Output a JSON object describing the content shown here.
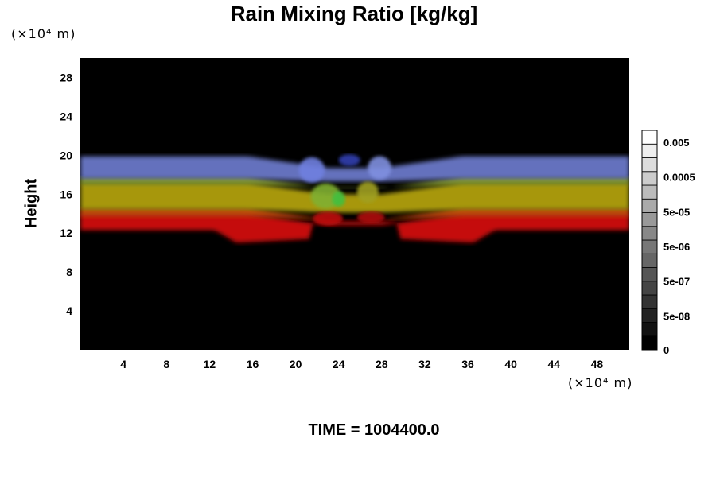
{
  "chart_data": {
    "type": "heatmap",
    "title": "Rain Mixing Ratio [kg/kg]",
    "ylabel": "Height",
    "y_unit": "(×10⁴ m)",
    "x_unit": "(×10⁴ m)",
    "footer": "TIME = 1004400.0",
    "xlim": [
      0,
      51
    ],
    "ylim": [
      0,
      30
    ],
    "x_ticks": [
      4,
      8,
      12,
      16,
      20,
      24,
      28,
      32,
      36,
      40,
      44,
      48
    ],
    "y_ticks": [
      4,
      8,
      12,
      16,
      20,
      24,
      28
    ],
    "colorbar": {
      "labels": [
        "0.005",
        "0.0005",
        "5e-05",
        "5e-06",
        "5e-07",
        "5e-08",
        "0"
      ],
      "levels": 16,
      "colors": [
        "#000000",
        "#ffffff"
      ]
    },
    "layers": [
      {
        "name": "red",
        "color": "#d01010",
        "ymin_edge": 11.0,
        "ymin_center": 12.3,
        "ymax": 14.0
      },
      {
        "name": "orange",
        "color": "#c84a10",
        "ymin": 13.7,
        "ymax": 14.6
      },
      {
        "name": "yellow",
        "color": "#b0a010",
        "ymin": 14.4,
        "ymax": 17.2
      },
      {
        "name": "green",
        "color": "#8aa030",
        "ymin": 17.0,
        "ymax": 17.8
      },
      {
        "name": "blue",
        "color": "#6a78c8",
        "ymin": 17.6,
        "ymax": 19.9
      }
    ],
    "background": "#000000"
  }
}
